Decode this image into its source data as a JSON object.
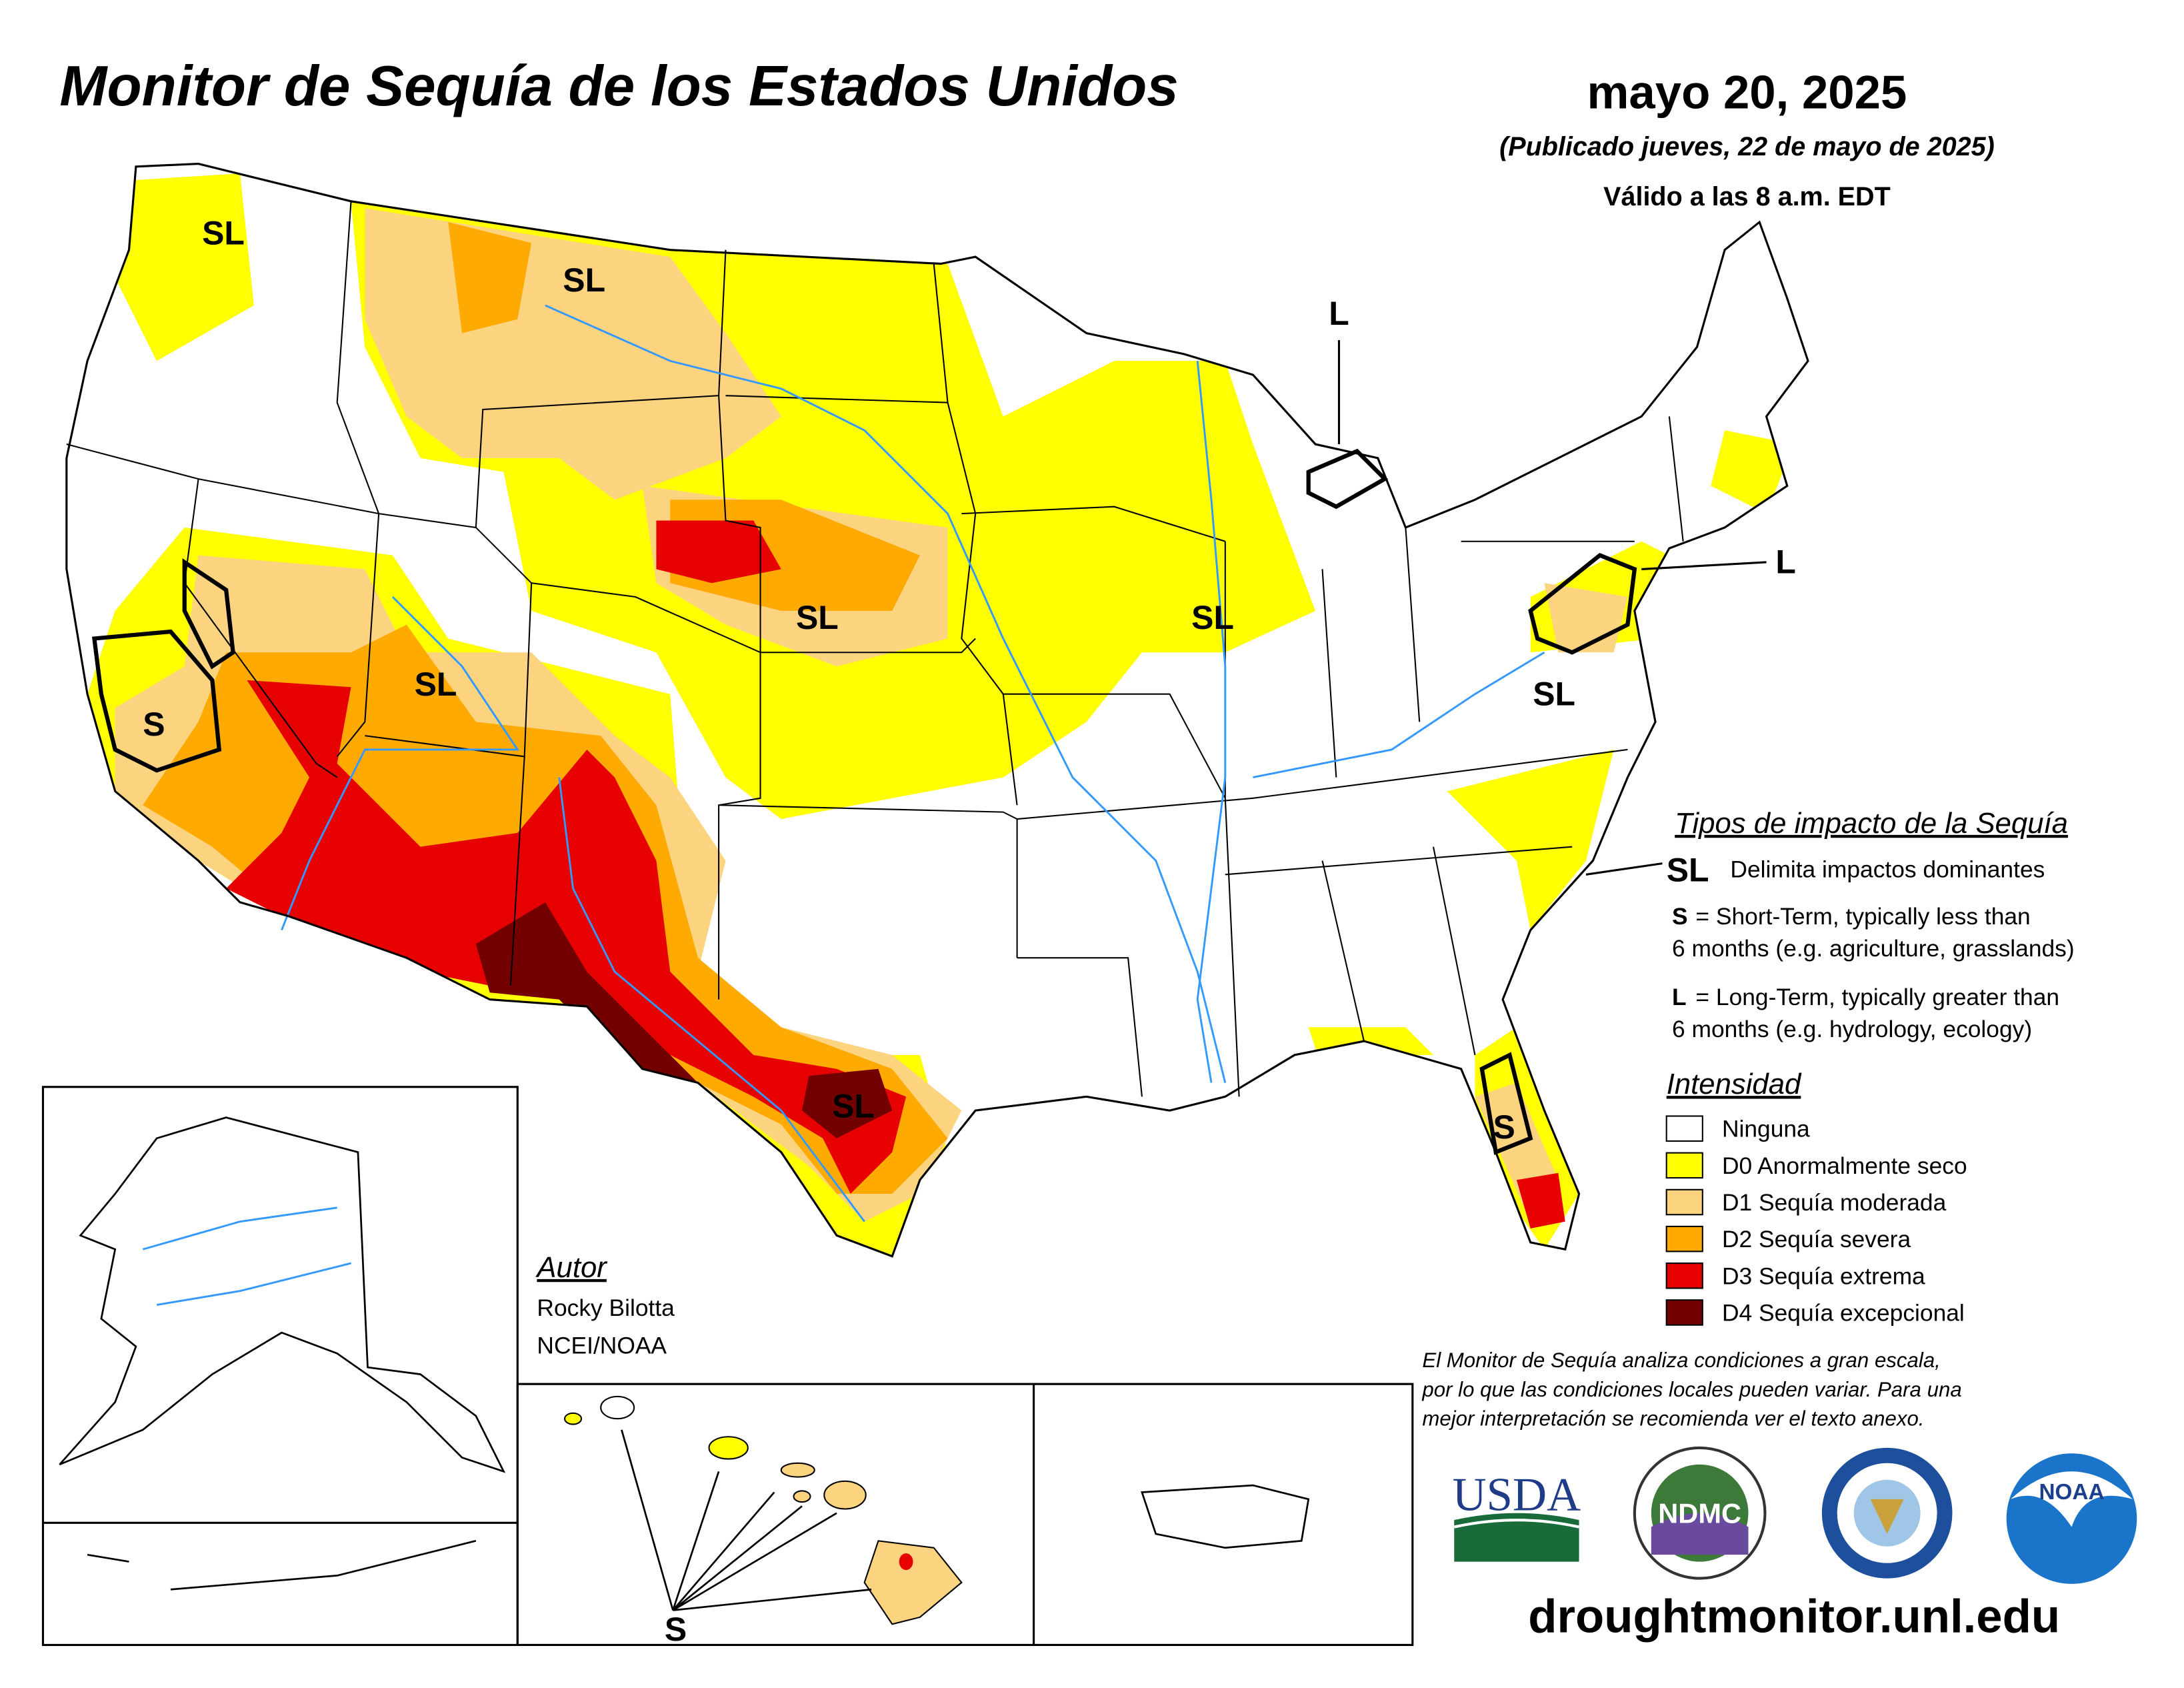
{
  "header": {
    "title": "Monitor de Sequía de los Estados Unidos",
    "date": "mayo 20, 2025",
    "published": "(Publicado jueves, 22 de mayo de 2025)",
    "valid": "Válido a las 8 a.m. EDT"
  },
  "map_labels": [
    "SL",
    "SL",
    "L",
    "SL",
    "S",
    "SL",
    "SL",
    "L",
    "SL",
    "SL",
    "S",
    "S"
  ],
  "impact_legend": {
    "title": "Tipos de impacto de la Sequía",
    "boundary_symbol": "SL",
    "boundary_text": "Delimita impactos dominantes",
    "short_term": {
      "symbol": "S",
      "lines": [
        "= Short-Term, typically less than",
        "6 months (e.g. agriculture, grasslands)"
      ]
    },
    "long_term": {
      "symbol": "L",
      "lines": [
        "= Long-Term, typically greater than",
        "6 months (e.g. hydrology, ecology)"
      ]
    }
  },
  "intensity_legend": {
    "title": "Intensidad",
    "items": [
      {
        "label": "Ninguna",
        "color": "#ffffff"
      },
      {
        "label": "D0 Anormalmente seco",
        "color": "#ffff00"
      },
      {
        "label": "D1 Sequía moderada",
        "color": "#fcd37f"
      },
      {
        "label": "D2 Sequía severa",
        "color": "#ffaa00"
      },
      {
        "label": "D3 Sequía extrema",
        "color": "#e60000"
      },
      {
        "label": "D4 Sequía excepcional",
        "color": "#730000"
      }
    ]
  },
  "author": {
    "title": "Autor",
    "name": "Rocky Bilotta",
    "org": "NCEI/NOAA"
  },
  "disclaimer": [
    "El Monitor de Sequía analiza condiciones a gran escala,",
    "por lo que las condiciones locales pueden variar. Para una",
    "mejor interpretación se recomienda ver el texto anexo."
  ],
  "logos": [
    "USDA",
    "NDMC",
    "NOAA"
  ],
  "url": "droughtmonitor.unl.edu"
}
